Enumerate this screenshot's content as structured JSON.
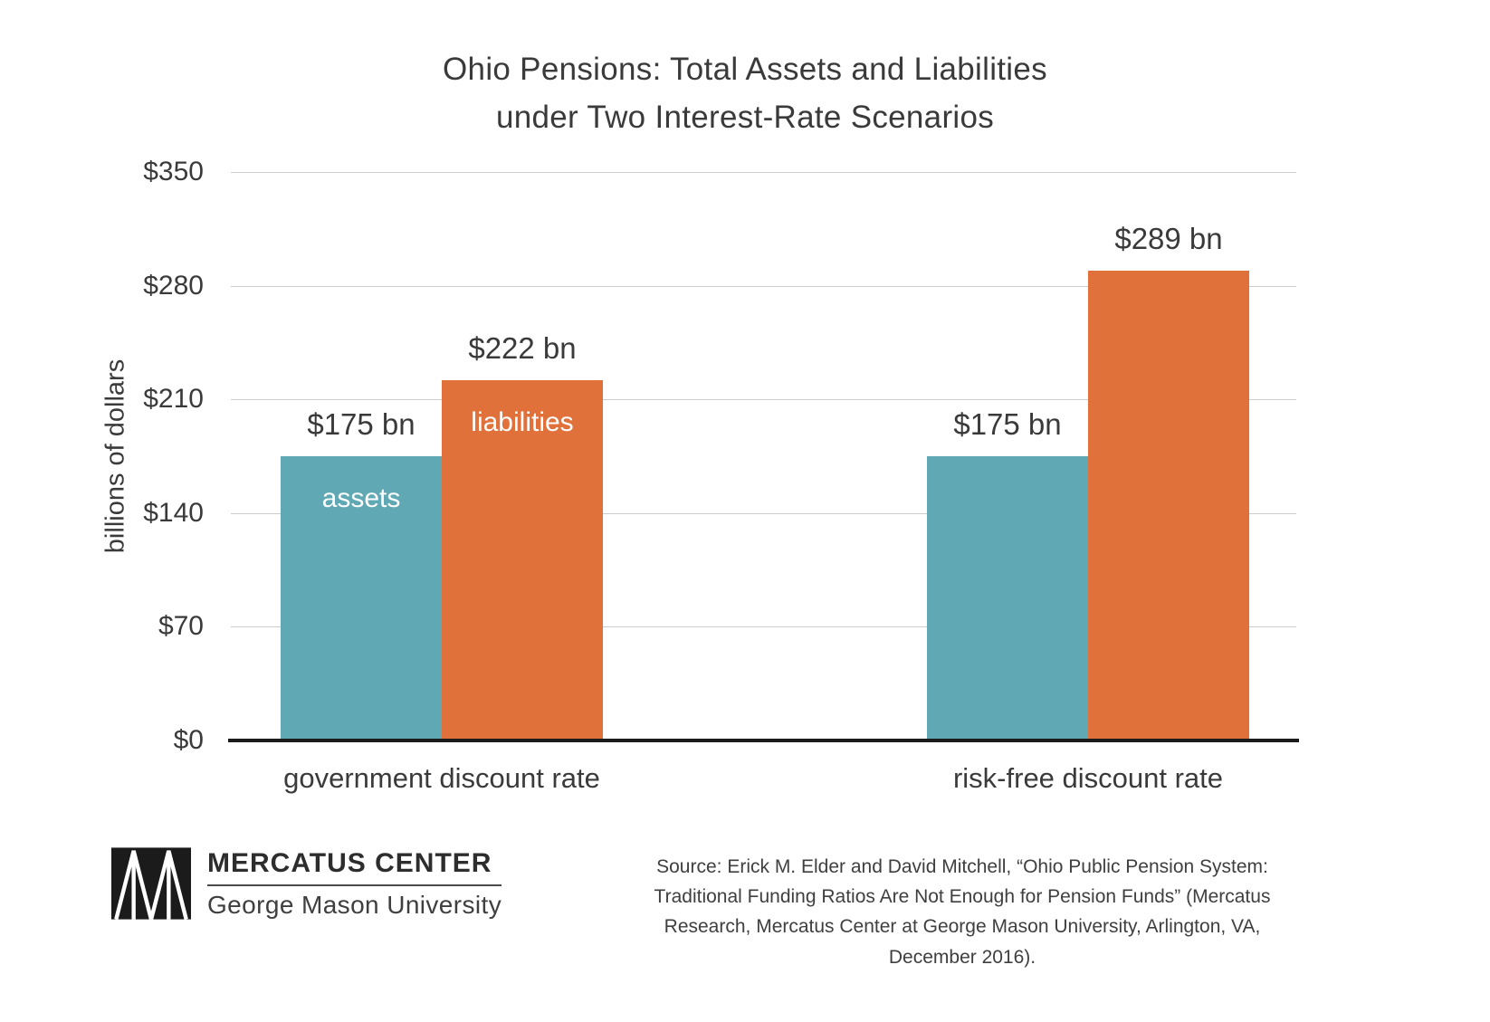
{
  "title": {
    "line1": "Ohio Pensions: Total Assets and Liabilities",
    "line2": "under Two Interest-Rate Scenarios"
  },
  "chart_data": {
    "type": "bar",
    "title": "Ohio Pensions: Total Assets and Liabilities under Two Interest-Rate Scenarios",
    "title_lines": [
      "Ohio Pensions: Total Assets and Liabilities",
      "under Two Interest-Rate Scenarios"
    ],
    "xlabel": "",
    "ylabel": "billions of dollars",
    "ylim": [
      0,
      350
    ],
    "yticks": [
      0,
      70,
      140,
      210,
      280,
      350
    ],
    "ytick_labels": [
      "$0",
      "$70",
      "$140",
      "$210",
      "$280",
      "$350"
    ],
    "grid": true,
    "legend": "series names printed inside first group's bars",
    "colors": {
      "assets": "#5fa8b4",
      "liabilities": "#e0713a"
    },
    "categories": [
      "government discount rate",
      "risk-free discount rate"
    ],
    "series": [
      {
        "name": "assets",
        "values": [
          175,
          175
        ]
      },
      {
        "name": "liabilities",
        "values": [
          222,
          289
        ]
      }
    ],
    "groups": [
      {
        "label": "government discount rate",
        "bars": [
          {
            "series": "assets",
            "value": 175,
            "value_label": "$175 bn",
            "inner_label": "assets"
          },
          {
            "series": "liabilities",
            "value": 222,
            "value_label": "$222 bn",
            "inner_label": "liabilities"
          }
        ]
      },
      {
        "label": "risk-free discount rate",
        "bars": [
          {
            "series": "assets",
            "value": 175,
            "value_label": "$175 bn",
            "inner_label": ""
          },
          {
            "series": "liabilities",
            "value": 289,
            "value_label": "$289 bn",
            "inner_label": ""
          }
        ]
      }
    ]
  },
  "footer": {
    "logo": {
      "org": "MERCATUS CENTER",
      "sub": "George Mason University",
      "mark_icon": "mercatus-triangles-mark"
    },
    "source": "Source: Erick M. Elder and David Mitchell, “Ohio Public Pension System: Traditional Funding Ratios Are Not Enough for Pension Funds” (Mercatus Research, Mercatus Center at George Mason University, Arlington, VA, December 2016)."
  }
}
